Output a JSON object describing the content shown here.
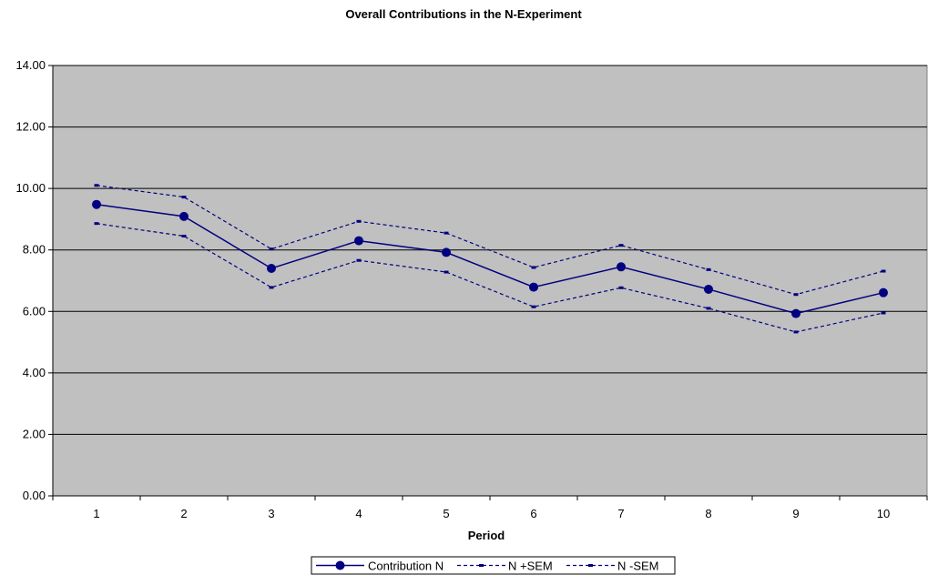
{
  "chart_data": {
    "type": "line",
    "title": "Overall Contributions in the N-Experiment",
    "xlabel": "Period",
    "ylabel": "",
    "categories": [
      "1",
      "2",
      "3",
      "4",
      "5",
      "6",
      "7",
      "8",
      "9",
      "10"
    ],
    "ylim": [
      0,
      14
    ],
    "yticks": [
      "0.00",
      "2.00",
      "4.00",
      "6.00",
      "8.00",
      "10.00",
      "12.00",
      "14.00"
    ],
    "grid": true,
    "legend_position": "bottom",
    "plot_background": "#C0C0C0",
    "series": [
      {
        "name": "Contribution N",
        "style": "solid-markers",
        "color": "#000080",
        "values": [
          9.48,
          9.09,
          7.4,
          8.3,
          7.92,
          6.79,
          7.45,
          6.72,
          5.93,
          6.61
        ]
      },
      {
        "name": "N +SEM",
        "style": "dashed",
        "color": "#000080",
        "values": [
          10.1,
          9.72,
          8.03,
          8.93,
          8.55,
          7.43,
          8.15,
          7.36,
          6.55,
          7.31
        ]
      },
      {
        "name": "N -SEM",
        "style": "dashed",
        "color": "#000080",
        "values": [
          8.86,
          8.45,
          6.78,
          7.66,
          7.28,
          6.15,
          6.77,
          6.1,
          5.33,
          5.95
        ]
      }
    ]
  }
}
